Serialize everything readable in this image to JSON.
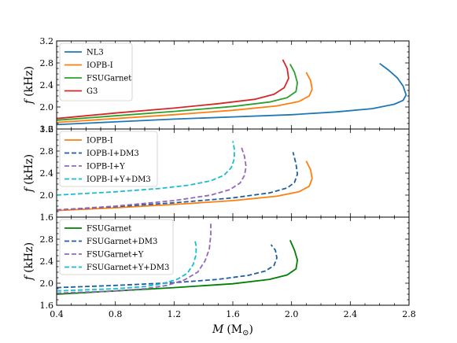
{
  "chart_data": [
    {
      "type": "line",
      "xlim": [
        0.4,
        2.8
      ],
      "ylim": [
        1.6,
        3.2
      ],
      "yticks": [
        "1.6",
        "2.0",
        "2.4",
        "2.8",
        "3.2"
      ],
      "ylabel_var": "f",
      "ylabel_unit": "(kHz)",
      "legend_position": "top-left",
      "series": [
        {
          "name": "NL3",
          "color": "#1f77b4",
          "dash": "solid",
          "x": [
            0.4,
            0.8,
            1.2,
            1.6,
            2.0,
            2.3,
            2.55,
            2.7,
            2.76,
            2.78,
            2.76,
            2.72,
            2.66,
            2.6
          ],
          "y": [
            1.68,
            1.73,
            1.78,
            1.82,
            1.86,
            1.91,
            1.97,
            2.05,
            2.12,
            2.22,
            2.38,
            2.53,
            2.67,
            2.79
          ]
        },
        {
          "name": "IOPB-I",
          "color": "#ff7f0e",
          "dash": "solid",
          "x": [
            0.4,
            0.8,
            1.2,
            1.6,
            1.9,
            2.05,
            2.12,
            2.14,
            2.13,
            2.1
          ],
          "y": [
            1.72,
            1.79,
            1.86,
            1.94,
            2.02,
            2.1,
            2.2,
            2.32,
            2.48,
            2.63
          ]
        },
        {
          "name": "FSUGarnet",
          "color": "#2ca02c",
          "dash": "solid",
          "x": [
            0.4,
            0.8,
            1.2,
            1.6,
            1.85,
            1.97,
            2.03,
            2.04,
            2.02,
            1.99
          ],
          "y": [
            1.76,
            1.84,
            1.92,
            2.01,
            2.09,
            2.17,
            2.28,
            2.44,
            2.63,
            2.78
          ]
        },
        {
          "name": "G3",
          "color": "#d62728",
          "dash": "solid",
          "x": [
            0.4,
            0.8,
            1.2,
            1.5,
            1.75,
            1.88,
            1.95,
            1.98,
            1.97,
            1.94
          ],
          "y": [
            1.79,
            1.89,
            1.98,
            2.06,
            2.14,
            2.23,
            2.35,
            2.52,
            2.7,
            2.86
          ]
        }
      ]
    },
    {
      "type": "line",
      "xlim": [
        0.4,
        2.8
      ],
      "ylim": [
        1.6,
        3.2
      ],
      "yticks": [
        "1.6",
        "2.0",
        "2.4",
        "2.8",
        "3.2"
      ],
      "ylabel_var": "f",
      "ylabel_unit": "(kHz)",
      "legend_position": "top-left",
      "series": [
        {
          "name": "IOPB-I",
          "color": "#ff7f0e",
          "dash": "solid",
          "x": [
            0.4,
            0.8,
            1.2,
            1.6,
            1.9,
            2.05,
            2.12,
            2.14,
            2.13,
            2.1
          ],
          "y": [
            1.72,
            1.77,
            1.83,
            1.9,
            1.98,
            2.06,
            2.16,
            2.3,
            2.46,
            2.62
          ]
        },
        {
          "name": "IOPB-I+DM3",
          "color": "#1f5fa0",
          "dash": "dashed",
          "x": [
            0.4,
            0.8,
            1.2,
            1.6,
            1.85,
            1.97,
            2.02,
            2.04,
            2.03,
            2.01
          ],
          "y": [
            1.73,
            1.79,
            1.86,
            1.95,
            2.04,
            2.13,
            2.23,
            2.38,
            2.57,
            2.78
          ]
        },
        {
          "name": "IOPB-I+Y",
          "color": "#9467bd",
          "dash": "dashed",
          "x": [
            0.4,
            0.8,
            1.2,
            1.45,
            1.58,
            1.65,
            1.68,
            1.69,
            1.68,
            1.66
          ],
          "y": [
            1.73,
            1.8,
            1.9,
            2.0,
            2.1,
            2.22,
            2.36,
            2.52,
            2.7,
            2.86
          ]
        },
        {
          "name": "IOPB-I+Y+DM3",
          "color": "#17becf",
          "dash": "dashed",
          "x": [
            0.4,
            0.8,
            1.1,
            1.3,
            1.45,
            1.54,
            1.59,
            1.61,
            1.61,
            1.6
          ],
          "y": [
            2.0,
            2.06,
            2.12,
            2.18,
            2.26,
            2.36,
            2.5,
            2.66,
            2.84,
            2.98
          ]
        }
      ]
    },
    {
      "type": "line",
      "xlim": [
        0.4,
        2.8
      ],
      "ylim": [
        1.6,
        3.2
      ],
      "xticks": [
        "0.4",
        "0.8",
        "1.2",
        "1.6",
        "2.0",
        "2.4",
        "2.8"
      ],
      "yticks": [
        "1.6",
        "2.0",
        "2.4",
        "2.8"
      ],
      "ylabel_var": "f",
      "ylabel_unit": "(kHz)",
      "xlabel_var": "M",
      "xlabel_unit": "(M",
      "xlabel_sub": "⊙",
      "xlabel_close": ")",
      "legend_position": "top-left",
      "series": [
        {
          "name": "FSUGarnet",
          "color": "#008000",
          "dash": "solid",
          "x": [
            0.4,
            0.8,
            1.2,
            1.6,
            1.85,
            1.97,
            2.03,
            2.04,
            2.02,
            1.99
          ],
          "y": [
            1.8,
            1.86,
            1.92,
            1.99,
            2.07,
            2.15,
            2.26,
            2.42,
            2.6,
            2.78
          ]
        },
        {
          "name": "FSUGarnet+DM3",
          "color": "#1f5fa0",
          "dash": "dashed",
          "x": [
            0.4,
            0.8,
            1.2,
            1.5,
            1.7,
            1.82,
            1.88,
            1.9,
            1.89,
            1.86
          ],
          "y": [
            1.92,
            1.96,
            2.01,
            2.07,
            2.14,
            2.22,
            2.32,
            2.46,
            2.6,
            2.7
          ]
        },
        {
          "name": "FSUGarnet+Y",
          "color": "#9467bd",
          "dash": "dashed",
          "x": [
            0.4,
            0.8,
            1.0,
            1.15,
            1.27,
            1.36,
            1.41,
            1.44,
            1.45,
            1.45
          ],
          "y": [
            1.82,
            1.86,
            1.9,
            1.96,
            2.06,
            2.2,
            2.4,
            2.62,
            2.88,
            3.08
          ]
        },
        {
          "name": "FSUGarnet+Y+DM3",
          "color": "#17becf",
          "dash": "dashed",
          "x": [
            0.4,
            0.8,
            1.0,
            1.12,
            1.22,
            1.29,
            1.33,
            1.35,
            1.35,
            1.34
          ],
          "y": [
            1.86,
            1.9,
            1.94,
            1.99,
            2.07,
            2.18,
            2.34,
            2.52,
            2.68,
            2.8
          ]
        }
      ]
    }
  ]
}
